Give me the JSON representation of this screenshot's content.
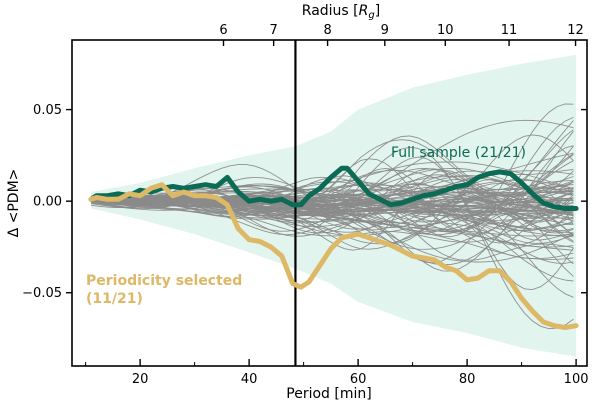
{
  "chart_data": {
    "type": "line",
    "xlabel": "Period [min]",
    "ylabel": "Δ <PDM>",
    "top_xlabel": "Radius [R_g]",
    "top_xlabel_main": "Radius [",
    "top_xlabel_italic": "R",
    "top_xlabel_sub": "g",
    "top_xlabel_close": "]",
    "xlim": [
      7.5,
      102
    ],
    "ylim": [
      -0.09,
      0.088
    ],
    "x_ticks": [
      20,
      40,
      60,
      80,
      100
    ],
    "x_tick_labels": [
      "20",
      "40",
      "60",
      "80",
      "100"
    ],
    "y_ticks": [
      0.05,
      0.0,
      -0.05
    ],
    "y_tick_labels": [
      "0.05",
      "0.00",
      "−0.05"
    ],
    "top_ticks": [
      {
        "label": "6",
        "period": 35.3
      },
      {
        "label": "7",
        "period": 44.5
      },
      {
        "label": "8",
        "period": 54.4
      },
      {
        "label": "9",
        "period": 64.9
      },
      {
        "label": "10",
        "period": 76.0
      },
      {
        "label": "11",
        "period": 87.7
      },
      {
        "label": "12",
        "period": 99.9
      }
    ],
    "vline_x": 48.5,
    "grid": false,
    "colors": {
      "full_sample": "#0b6b55",
      "periodicity": "#ddb866",
      "band": "#e2f4ee",
      "realizations": "#8a8a8a",
      "vline": "#000000"
    },
    "band": {
      "x": [
        11,
        20,
        30,
        40,
        48.5,
        55,
        60,
        70,
        80,
        90,
        100
      ],
      "upper": [
        0.005,
        0.01,
        0.018,
        0.025,
        0.03,
        0.038,
        0.05,
        0.062,
        0.069,
        0.075,
        0.08
      ],
      "lower": [
        -0.004,
        -0.01,
        -0.018,
        -0.028,
        -0.037,
        -0.045,
        -0.055,
        -0.066,
        -0.072,
        -0.08,
        -0.085
      ]
    },
    "realizations": {
      "count": 100,
      "x_start": 11,
      "x_end": 100
    },
    "series": [
      {
        "name": "Full sample (21/21)",
        "x": [
          11,
          12,
          14,
          16,
          18,
          20,
          22,
          24,
          26,
          28,
          30,
          32,
          34,
          36,
          38,
          40,
          42,
          44,
          46,
          48,
          49.5,
          51,
          53,
          55,
          57,
          58,
          60,
          62,
          64,
          66,
          68,
          70,
          72,
          74,
          76,
          78,
          80,
          82,
          84,
          86,
          88,
          90,
          92,
          94,
          96,
          98,
          100
        ],
        "values": [
          0.001,
          0.003,
          0.003,
          0.004,
          0.003,
          0.006,
          0.005,
          0.007,
          0.008,
          0.007,
          0.008,
          0.009,
          0.008,
          0.013,
          0.005,
          0.0,
          0.001,
          0.0,
          0.001,
          -0.002,
          -0.002,
          0.003,
          0.007,
          0.013,
          0.018,
          0.018,
          0.011,
          0.004,
          0.001,
          -0.002,
          -0.001,
          0.001,
          0.003,
          0.004,
          0.006,
          0.008,
          0.009,
          0.013,
          0.015,
          0.016,
          0.015,
          0.01,
          0.004,
          -0.001,
          -0.003,
          -0.004,
          -0.004
        ]
      },
      {
        "name": "Periodicity selected (11/21)",
        "x": [
          11,
          12,
          14,
          16,
          18,
          20,
          22,
          24,
          26,
          28,
          30,
          32,
          34,
          36,
          38,
          40,
          42,
          44,
          46,
          48,
          49.5,
          51,
          53,
          55,
          57,
          60,
          62,
          64,
          66,
          68,
          70,
          72,
          74,
          76,
          78,
          80,
          82,
          84,
          86,
          88,
          90,
          92,
          94,
          96,
          98,
          100
        ],
        "values": [
          0.001,
          0.002,
          0.001,
          0.001,
          0.004,
          0.003,
          0.007,
          0.009,
          0.003,
          0.005,
          0.003,
          0.003,
          0.002,
          -0.002,
          -0.015,
          -0.021,
          -0.022,
          -0.025,
          -0.03,
          -0.045,
          -0.047,
          -0.044,
          -0.035,
          -0.026,
          -0.02,
          -0.018,
          -0.02,
          -0.022,
          -0.024,
          -0.027,
          -0.03,
          -0.031,
          -0.032,
          -0.036,
          -0.038,
          -0.043,
          -0.042,
          -0.038,
          -0.038,
          -0.044,
          -0.053,
          -0.06,
          -0.066,
          -0.068,
          -0.069,
          -0.068
        ]
      }
    ],
    "annotations": {
      "full_sample": "Full sample (21/21)",
      "periodicity_line1": "Periodicity selected",
      "periodicity_line2": "(11/21)"
    }
  }
}
